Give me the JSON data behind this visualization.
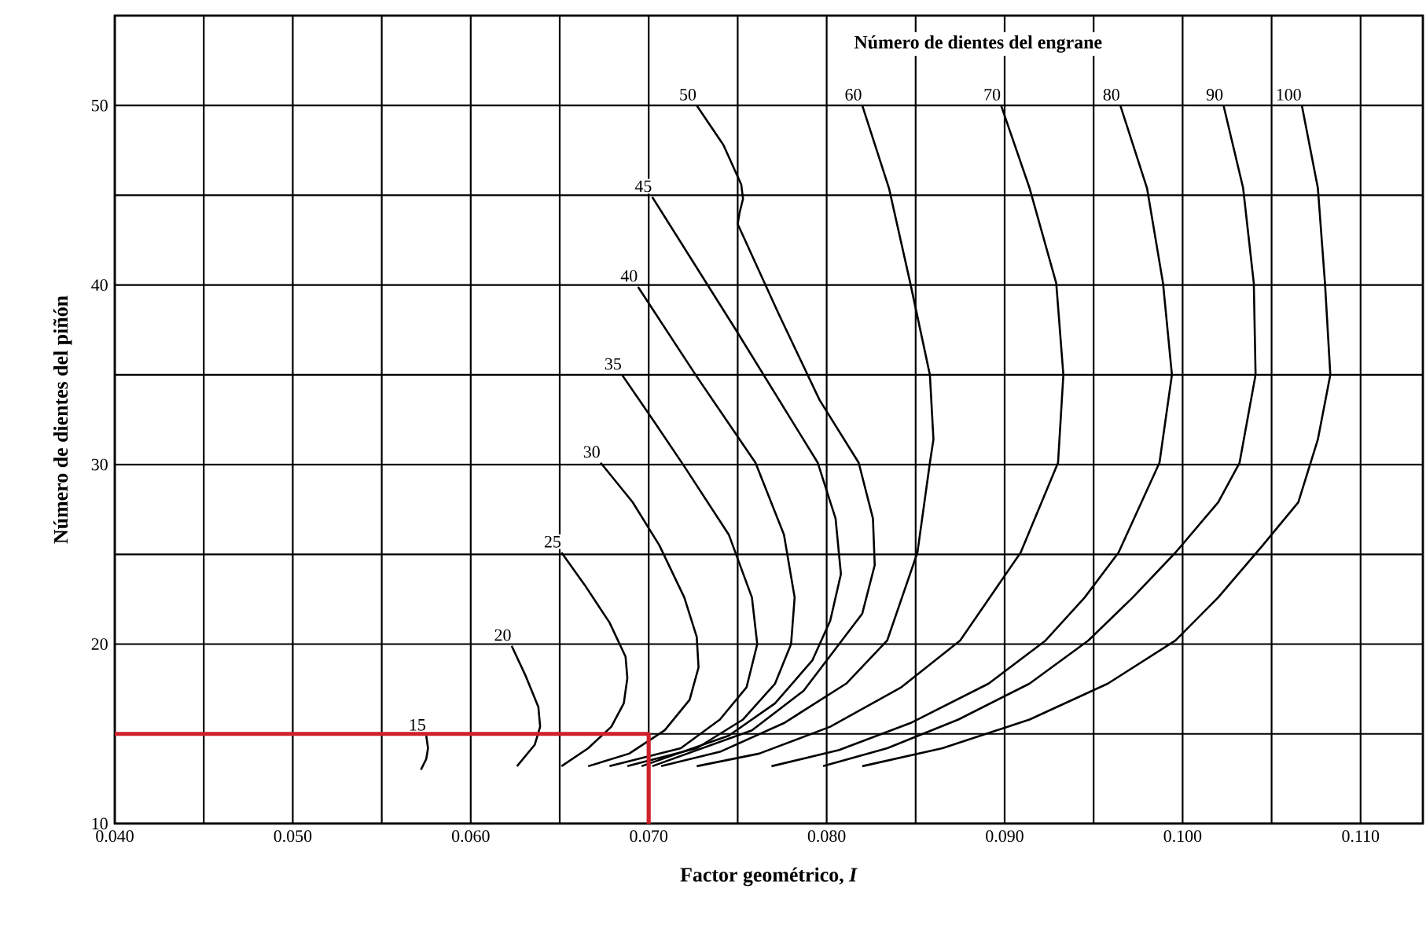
{
  "chart_data": {
    "type": "line",
    "legend_title": "Número de dientes del engrane",
    "xlabel": "Factor geométrico, *I*",
    "ylabel": "Número de dientes del piñón",
    "xlim": [
      0.04,
      0.1135
    ],
    "ylim": [
      10,
      55
    ],
    "xticks": [
      {
        "value": 0.04,
        "label": "0.040"
      },
      {
        "value": 0.045,
        "label": null
      },
      {
        "value": 0.05,
        "label": "0.050"
      },
      {
        "value": 0.055,
        "label": null
      },
      {
        "value": 0.06,
        "label": "0.060"
      },
      {
        "value": 0.065,
        "label": null
      },
      {
        "value": 0.07,
        "label": "0.070"
      },
      {
        "value": 0.075,
        "label": null
      },
      {
        "value": 0.08,
        "label": "0.080"
      },
      {
        "value": 0.085,
        "label": null
      },
      {
        "value": 0.09,
        "label": "0.090"
      },
      {
        "value": 0.095,
        "label": null
      },
      {
        "value": 0.1,
        "label": "0.100"
      },
      {
        "value": 0.105,
        "label": null
      },
      {
        "value": 0.11,
        "label": "0.110"
      }
    ],
    "yticks": [
      10,
      {
        "value": 15,
        "label": null
      },
      20,
      {
        "value": 25,
        "label": null
      },
      30,
      {
        "value": 35,
        "label": null
      },
      40,
      {
        "value": 45,
        "label": null
      },
      50
    ],
    "grid": true,
    "line_style": "solid",
    "marker": "none",
    "series": [
      {
        "name": "15",
        "color": "#000000",
        "x": [
          0.0575,
          0.0576,
          0.0575,
          0.0572
        ],
        "values": [
          14.9,
          14.2,
          13.6,
          13.0
        ]
      },
      {
        "name": "20",
        "color": "#000000",
        "x": [
          0.0623,
          0.0631,
          0.0638,
          0.0639,
          0.0636,
          0.0626
        ],
        "values": [
          19.9,
          18.2,
          16.5,
          15.4,
          14.4,
          13.2
        ]
      },
      {
        "name": "25",
        "color": "#000000",
        "x": [
          0.0651,
          0.0664,
          0.0678,
          0.0687,
          0.0688,
          0.0686,
          0.0679,
          0.0666,
          0.0651
        ],
        "values": [
          25.1,
          23.3,
          21.2,
          19.3,
          18.1,
          16.7,
          15.4,
          14.2,
          13.2
        ]
      },
      {
        "name": "30",
        "color": "#000000",
        "x": [
          0.0673,
          0.0691,
          0.0706,
          0.072,
          0.0727,
          0.0728,
          0.0723,
          0.0709,
          0.0689,
          0.0666
        ],
        "values": [
          30.1,
          27.9,
          25.5,
          22.6,
          20.4,
          18.7,
          16.9,
          15.2,
          13.9,
          13.2
        ]
      },
      {
        "name": "35",
        "color": "#000000",
        "x": [
          0.0685,
          0.0703,
          0.072,
          0.0745,
          0.0758,
          0.0761,
          0.0755,
          0.074,
          0.0718,
          0.0678
        ],
        "values": [
          35.0,
          32.4,
          29.9,
          26.1,
          22.6,
          20.0,
          17.6,
          15.8,
          14.2,
          13.2
        ]
      },
      {
        "name": "40",
        "color": "#000000",
        "x": [
          0.0694,
          0.0727,
          0.076,
          0.0776,
          0.0782,
          0.078,
          0.0771,
          0.0753,
          0.0727,
          0.0688
        ],
        "values": [
          39.9,
          34.9,
          30.1,
          26.1,
          22.6,
          20.0,
          17.8,
          15.8,
          14.2,
          13.2
        ]
      },
      {
        "name": "45",
        "color": "#000000",
        "x": [
          0.0702,
          0.0749,
          0.0795,
          0.0805,
          0.0808,
          0.0802,
          0.0792,
          0.0771,
          0.0745,
          0.0696
        ],
        "values": [
          44.9,
          37.5,
          30.1,
          27.0,
          23.9,
          21.3,
          19.1,
          16.7,
          14.9,
          13.2
        ]
      },
      {
        "name": "50",
        "color": "#000000",
        "x": [
          0.0727,
          0.0742,
          0.0752,
          0.0753,
          0.0751,
          0.075,
          0.0773,
          0.0796,
          0.0818,
          0.0826,
          0.0827,
          0.082,
          0.0807,
          0.0787,
          0.0758,
          0.0702
        ],
        "values": [
          50.0,
          47.8,
          45.6,
          44.8,
          44.0,
          43.4,
          38.4,
          33.6,
          30.1,
          27.0,
          24.4,
          21.7,
          20.0,
          17.4,
          15.2,
          13.2
        ]
      },
      {
        "name": "60",
        "color": "#000000",
        "x": [
          0.082,
          0.0835,
          0.0847,
          0.0858,
          0.086,
          0.0858,
          0.0851,
          0.0834,
          0.0811,
          0.0776,
          0.074,
          0.0707
        ],
        "values": [
          50.0,
          45.4,
          40.1,
          35.0,
          31.4,
          30.1,
          25.1,
          20.2,
          17.8,
          15.6,
          14.0,
          13.2
        ]
      },
      {
        "name": "70",
        "color": "#000000",
        "x": [
          0.0898,
          0.0914,
          0.0929,
          0.0933,
          0.093,
          0.0909,
          0.0875,
          0.0842,
          0.0802,
          0.0762,
          0.0727
        ],
        "values": [
          50.0,
          45.4,
          40.1,
          35.0,
          30.1,
          25.1,
          20.2,
          17.6,
          15.4,
          13.9,
          13.2
        ]
      },
      {
        "name": "80",
        "color": "#000000",
        "x": [
          0.0965,
          0.098,
          0.0989,
          0.0994,
          0.0987,
          0.0964,
          0.0945,
          0.0923,
          0.0891,
          0.0847,
          0.0807,
          0.0769
        ],
        "values": [
          50.0,
          45.4,
          40.1,
          35.0,
          30.1,
          25.1,
          22.6,
          20.2,
          17.8,
          15.6,
          14.1,
          13.2
        ]
      },
      {
        "name": "90",
        "color": "#000000",
        "x": [
          0.1023,
          0.1034,
          0.104,
          0.1041,
          0.1032,
          0.102,
          0.0996,
          0.0972,
          0.0947,
          0.0914,
          0.0874,
          0.0834,
          0.0798
        ],
        "values": [
          50.0,
          45.4,
          40.1,
          35.0,
          30.1,
          27.9,
          25.1,
          22.6,
          20.2,
          17.8,
          15.8,
          14.2,
          13.2
        ]
      },
      {
        "name": "100",
        "color": "#000000",
        "x": [
          0.1067,
          0.1076,
          0.108,
          0.1083,
          0.1076,
          0.1065,
          0.1045,
          0.102,
          0.0996,
          0.0958,
          0.0914,
          0.0865,
          0.082
        ],
        "values": [
          50.0,
          45.4,
          40.1,
          35.0,
          31.4,
          27.9,
          25.5,
          22.6,
          20.2,
          17.8,
          15.8,
          14.2,
          13.2
        ]
      },
      {
        "color": "#d0202a",
        "x": [
          0.04,
          0.07,
          0.07
        ],
        "values": [
          15,
          15,
          10
        ]
      }
    ]
  }
}
